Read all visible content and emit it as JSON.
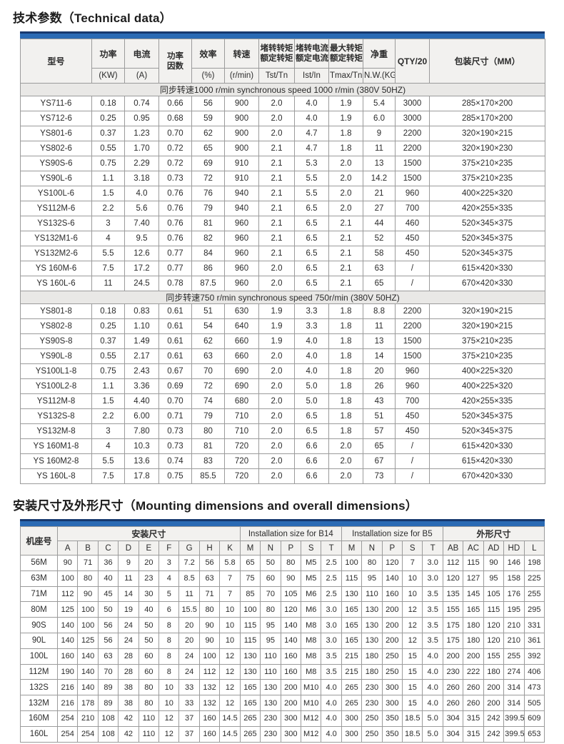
{
  "titles": {
    "tech": "技术参数（Technical data）",
    "mount": "安装尺寸及外形尺寸（Mounting dimensions and overall dimensions）"
  },
  "colors": {
    "accent_blue": "#2a6ab4",
    "accent_dark_blue": "#16386e",
    "header_bg": "#f2f1ef",
    "section_bg": "#e9e8e6",
    "border": "#9b9b9b"
  },
  "tech_table": {
    "header": {
      "model": "型号",
      "power": "功率",
      "power_u": "(KW)",
      "current": "电流",
      "current_u": "(A)",
      "pf_1": "功率",
      "pf_2": "因数",
      "eff": "效率",
      "eff_u": "(%)",
      "speed": "转速",
      "speed_u": "(r/min)",
      "tst_1": "堵转转矩",
      "tst_2": "额定转矩",
      "tst_u": "Tst/Tn",
      "ist_1": "堵转电流",
      "ist_2": "额定电流",
      "ist_u": "Ist/In",
      "tmax_1": "最大转矩",
      "tmax_2": "额定转矩",
      "tmax_u": "Tmax/Tn",
      "nw": "净重",
      "nw_u": "N.W.(KG)",
      "qty": "QTY/20",
      "pack": "包装尺寸（MM）"
    },
    "sections": [
      {
        "title": "同步转速1000 r/min synchronous speed 1000 r/min (380V 50HZ)",
        "rows": [
          [
            "YS711-6",
            "0.18",
            "0.74",
            "0.66",
            "56",
            "900",
            "2.0",
            "4.0",
            "1.9",
            "5.4",
            "3000",
            "285×170×200"
          ],
          [
            "YS712-6",
            "0.25",
            "0.95",
            "0.68",
            "59",
            "900",
            "2.0",
            "4.0",
            "1.9",
            "6.0",
            "3000",
            "285×170×200"
          ],
          [
            "YS801-6",
            "0.37",
            "1.23",
            "0.70",
            "62",
            "900",
            "2.0",
            "4.7",
            "1.8",
            "9",
            "2200",
            "320×190×215"
          ],
          [
            "YS802-6",
            "0.55",
            "1.70",
            "0.72",
            "65",
            "900",
            "2.1",
            "4.7",
            "1.8",
            "11",
            "2200",
            "320×190×230"
          ],
          [
            "YS90S-6",
            "0.75",
            "2.29",
            "0.72",
            "69",
            "910",
            "2.1",
            "5.3",
            "2.0",
            "13",
            "1500",
            "375×210×235"
          ],
          [
            "YS90L-6",
            "1.1",
            "3.18",
            "0.73",
            "72",
            "910",
            "2.1",
            "5.5",
            "2.0",
            "14.2",
            "1500",
            "375×210×235"
          ],
          [
            "YS100L-6",
            "1.5",
            "4.0",
            "0.76",
            "76",
            "940",
            "2.1",
            "5.5",
            "2.0",
            "21",
            "960",
            "400×225×320"
          ],
          [
            "YS112M-6",
            "2.2",
            "5.6",
            "0.76",
            "79",
            "940",
            "2.1",
            "6.5",
            "2.0",
            "27",
            "700",
            "420×255×335"
          ],
          [
            "YS132S-6",
            "3",
            "7.40",
            "0.76",
            "81",
            "960",
            "2.1",
            "6.5",
            "2.1",
            "44",
            "460",
            "520×345×375"
          ],
          [
            "YS132M1-6",
            "4",
            "9.5",
            "0.76",
            "82",
            "960",
            "2.1",
            "6.5",
            "2.1",
            "52",
            "450",
            "520×345×375"
          ],
          [
            "YS132M2-6",
            "5.5",
            "12.6",
            "0.77",
            "84",
            "960",
            "2.1",
            "6.5",
            "2.1",
            "58",
            "450",
            "520×345×375"
          ],
          [
            "YS 160M-6",
            "7.5",
            "17.2",
            "0.77",
            "86",
            "960",
            "2.0",
            "6.5",
            "2.1",
            "63",
            "/",
            "615×420×330"
          ],
          [
            "YS 160L-6",
            "11",
            "24.5",
            "0.78",
            "87.5",
            "960",
            "2.0",
            "6.5",
            "2.1",
            "65",
            "/",
            "670×420×330"
          ]
        ]
      },
      {
        "title": "同步转速750 r/min synchronous speed 750r/min (380V 50HZ)",
        "rows": [
          [
            "YS801-8",
            "0.18",
            "0.83",
            "0.61",
            "51",
            "630",
            "1.9",
            "3.3",
            "1.8",
            "8.8",
            "2200",
            "320×190×215"
          ],
          [
            "YS802-8",
            "0.25",
            "1.10",
            "0.61",
            "54",
            "640",
            "1.9",
            "3.3",
            "1.8",
            "11",
            "2200",
            "320×190×215"
          ],
          [
            "YS90S-8",
            "0.37",
            "1.49",
            "0.61",
            "62",
            "660",
            "1.9",
            "4.0",
            "1.8",
            "13",
            "1500",
            "375×210×235"
          ],
          [
            "YS90L-8",
            "0.55",
            "2.17",
            "0.61",
            "63",
            "660",
            "2.0",
            "4.0",
            "1.8",
            "14",
            "1500",
            "375×210×235"
          ],
          [
            "YS100L1-8",
            "0.75",
            "2.43",
            "0.67",
            "70",
            "690",
            "2.0",
            "4.0",
            "1.8",
            "20",
            "960",
            "400×225×320"
          ],
          [
            "YS100L2-8",
            "1.1",
            "3.36",
            "0.69",
            "72",
            "690",
            "2.0",
            "5.0",
            "1.8",
            "26",
            "960",
            "400×225×320"
          ],
          [
            "YS112M-8",
            "1.5",
            "4.40",
            "0.70",
            "74",
            "680",
            "2.0",
            "5.0",
            "1.8",
            "43",
            "700",
            "420×255×335"
          ],
          [
            "YS132S-8",
            "2.2",
            "6.00",
            "0.71",
            "79",
            "710",
            "2.0",
            "6.5",
            "1.8",
            "51",
            "450",
            "520×345×375"
          ],
          [
            "YS132M-8",
            "3",
            "7.80",
            "0.73",
            "80",
            "710",
            "2.0",
            "6.5",
            "1.8",
            "57",
            "450",
            "520×345×375"
          ],
          [
            "YS 160M1-8",
            "4",
            "10.3",
            "0.73",
            "81",
            "720",
            "2.0",
            "6.6",
            "2.0",
            "65",
            "/",
            "615×420×330"
          ],
          [
            "YS 160M2-8",
            "5.5",
            "13.6",
            "0.74",
            "83",
            "720",
            "2.0",
            "6.6",
            "2.0",
            "67",
            "/",
            "615×420×330"
          ],
          [
            "YS 160L-8",
            "7.5",
            "17.8",
            "0.75",
            "85.5",
            "720",
            "2.0",
            "6.6",
            "2.0",
            "73",
            "/",
            "670×420×330"
          ]
        ]
      }
    ]
  },
  "dim_table": {
    "frame": "机座号",
    "groups": [
      {
        "label": "安装尺寸",
        "cols": [
          "A",
          "B",
          "C",
          "D",
          "E",
          "F",
          "G",
          "H",
          "K"
        ]
      },
      {
        "label": "Installation size for B14",
        "cols": [
          "M",
          "N",
          "P",
          "S",
          "T"
        ]
      },
      {
        "label": "Installation size for B5",
        "cols": [
          "M",
          "N",
          "P",
          "S",
          "T"
        ]
      },
      {
        "label": "外形尺寸",
        "cols": [
          "AB",
          "AC",
          "AD",
          "HD",
          "L"
        ]
      }
    ],
    "rows": [
      [
        "56M",
        "90",
        "71",
        "36",
        "9",
        "20",
        "3",
        "7.2",
        "56",
        "5.8",
        "65",
        "50",
        "80",
        "M5",
        "2.5",
        "100",
        "80",
        "120",
        "7",
        "3.0",
        "112",
        "115",
        "90",
        "146",
        "198"
      ],
      [
        "63M",
        "100",
        "80",
        "40",
        "11",
        "23",
        "4",
        "8.5",
        "63",
        "7",
        "75",
        "60",
        "90",
        "M5",
        "2.5",
        "115",
        "95",
        "140",
        "10",
        "3.0",
        "120",
        "127",
        "95",
        "158",
        "225"
      ],
      [
        "71M",
        "112",
        "90",
        "45",
        "14",
        "30",
        "5",
        "11",
        "71",
        "7",
        "85",
        "70",
        "105",
        "M6",
        "2.5",
        "130",
        "110",
        "160",
        "10",
        "3.5",
        "135",
        "145",
        "105",
        "176",
        "255"
      ],
      [
        "80M",
        "125",
        "100",
        "50",
        "19",
        "40",
        "6",
        "15.5",
        "80",
        "10",
        "100",
        "80",
        "120",
        "M6",
        "3.0",
        "165",
        "130",
        "200",
        "12",
        "3.5",
        "155",
        "165",
        "115",
        "195",
        "295"
      ],
      [
        "90S",
        "140",
        "100",
        "56",
        "24",
        "50",
        "8",
        "20",
        "90",
        "10",
        "115",
        "95",
        "140",
        "M8",
        "3.0",
        "165",
        "130",
        "200",
        "12",
        "3.5",
        "175",
        "180",
        "120",
        "210",
        "331"
      ],
      [
        "90L",
        "140",
        "125",
        "56",
        "24",
        "50",
        "8",
        "20",
        "90",
        "10",
        "115",
        "95",
        "140",
        "M8",
        "3.0",
        "165",
        "130",
        "200",
        "12",
        "3.5",
        "175",
        "180",
        "120",
        "210",
        "361"
      ],
      [
        "100L",
        "160",
        "140",
        "63",
        "28",
        "60",
        "8",
        "24",
        "100",
        "12",
        "130",
        "110",
        "160",
        "M8",
        "3.5",
        "215",
        "180",
        "250",
        "15",
        "4.0",
        "200",
        "200",
        "155",
        "255",
        "392"
      ],
      [
        "112M",
        "190",
        "140",
        "70",
        "28",
        "60",
        "8",
        "24",
        "112",
        "12",
        "130",
        "110",
        "160",
        "M8",
        "3.5",
        "215",
        "180",
        "250",
        "15",
        "4.0",
        "230",
        "222",
        "180",
        "274",
        "406"
      ],
      [
        "132S",
        "216",
        "140",
        "89",
        "38",
        "80",
        "10",
        "33",
        "132",
        "12",
        "165",
        "130",
        "200",
        "M10",
        "4.0",
        "265",
        "230",
        "300",
        "15",
        "4.0",
        "260",
        "260",
        "200",
        "314",
        "473"
      ],
      [
        "132M",
        "216",
        "178",
        "89",
        "38",
        "80",
        "10",
        "33",
        "132",
        "12",
        "165",
        "130",
        "200",
        "M10",
        "4.0",
        "265",
        "230",
        "300",
        "15",
        "4.0",
        "260",
        "260",
        "200",
        "314",
        "505"
      ],
      [
        "160M",
        "254",
        "210",
        "108",
        "42",
        "110",
        "12",
        "37",
        "160",
        "14.5",
        "265",
        "230",
        "300",
        "M12",
        "4.0",
        "300",
        "250",
        "350",
        "18.5",
        "5.0",
        "304",
        "315",
        "242",
        "399.5",
        "609"
      ],
      [
        "160L",
        "254",
        "254",
        "108",
        "42",
        "110",
        "12",
        "37",
        "160",
        "14.5",
        "265",
        "230",
        "300",
        "M12",
        "4.0",
        "300",
        "250",
        "350",
        "18.5",
        "5.0",
        "304",
        "315",
        "242",
        "399.5",
        "653"
      ]
    ]
  }
}
